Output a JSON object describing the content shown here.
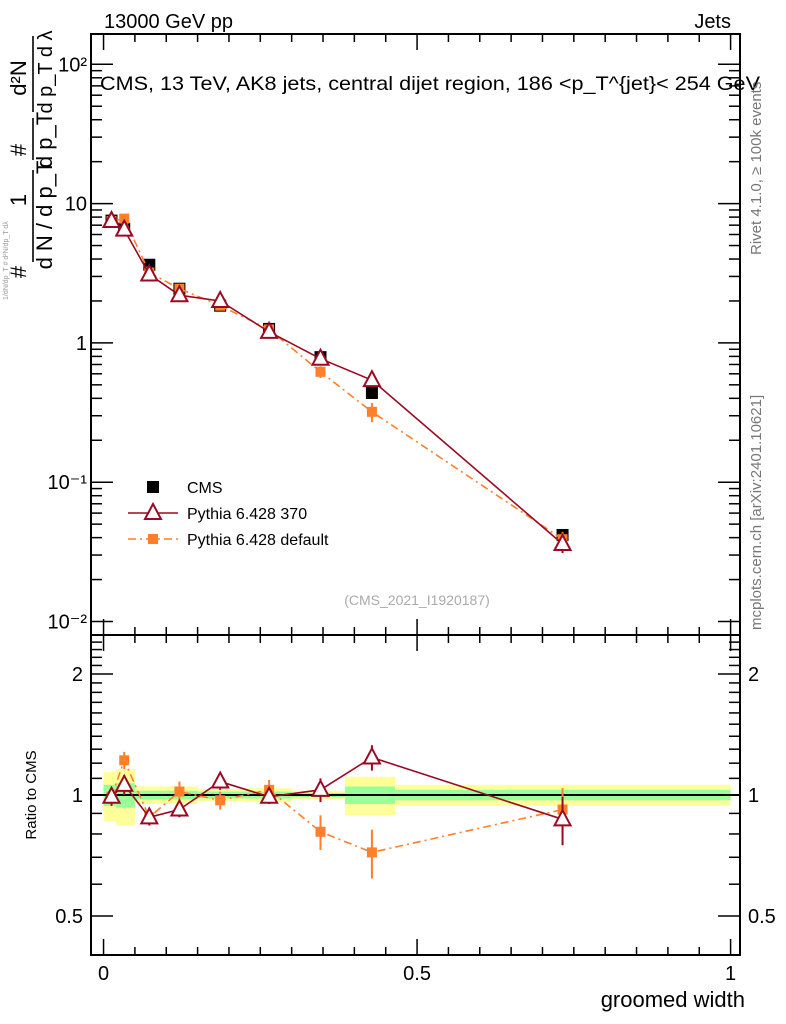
{
  "chart_data": [
    {
      "type": "line",
      "title": "CMS, 13 TeV, AK8 jets, central dijet region, 186 <p_T^{jet}< 254 GeV",
      "top_left_label": "13000 GeV pp",
      "top_right_label": "Jets",
      "side_label_top": "Rivet 4.1.0, ≥ 100k events",
      "side_label_bottom": "mcplots.cern.ch [arXiv:2401.10621]",
      "analysis_label": "(CMS_2021_I1920187)",
      "ylabel": "1/dN/dp_T # d²N/dp_T dλ",
      "ylabel_parts": [
        "#",
        "1",
        "d N / d p_T",
        "#",
        "d p_T",
        "d²N",
        "d p_T d λ"
      ],
      "yscale": "log",
      "ylim": [
        0.008,
        165
      ],
      "yticks": [
        {
          "v": 100,
          "label": "10²"
        },
        {
          "v": 10,
          "label": "10"
        },
        {
          "v": 1,
          "label": "1"
        },
        {
          "v": 0.1,
          "label": "10⁻¹"
        },
        {
          "v": 0.01,
          "label": "10⁻²"
        }
      ],
      "xlim": [
        -0.02,
        1.015
      ],
      "legend_position": "bottom-left",
      "x": [
        0.0127,
        0.033,
        0.073,
        0.121,
        0.186,
        0.264,
        0.346,
        0.428,
        0.732
      ],
      "series": [
        {
          "name": "CMS",
          "color": "#000000",
          "marker": "square",
          "values": [
            7.55,
            6.6,
            3.64,
            2.45,
            1.85,
            1.26,
            0.79,
            0.437,
            0.0418
          ],
          "errors": [
            0.2,
            0.2,
            0.1,
            0.07,
            0.05,
            0.04,
            0.03,
            0.02,
            0.003
          ]
        },
        {
          "name": "Pythia 6.428 370",
          "color": "#9b0a23",
          "marker": "triangle-open",
          "line": "solid",
          "values": [
            7.5,
            6.5,
            3.1,
            2.2,
            2.0,
            1.2,
            0.77,
            0.54,
            0.036
          ],
          "errors": [
            0.4,
            0.3,
            0.12,
            0.1,
            0.1,
            0.06,
            0.05,
            0.05,
            0.005
          ]
        },
        {
          "name": "Pythia 6.428 default",
          "color": "#ff7f2a",
          "marker": "square-small",
          "line": "dashdot",
          "values": [
            7.5,
            7.8,
            3.2,
            2.45,
            1.85,
            1.25,
            0.62,
            0.32,
            0.039
          ],
          "errors": [
            0.4,
            0.3,
            0.12,
            0.1,
            0.1,
            0.06,
            0.06,
            0.05,
            0.005
          ]
        }
      ]
    },
    {
      "type": "line",
      "ylabel": "Ratio to CMS",
      "xlabel": "groomed width",
      "yscale": "log",
      "ylim": [
        0.4,
        2.5
      ],
      "yticks": [
        {
          "v": 2,
          "label": "2"
        },
        {
          "v": 1,
          "label": "1"
        },
        {
          "v": 0.5,
          "label": "0.5"
        }
      ],
      "xticks": [
        {
          "v": 0,
          "label": "0"
        },
        {
          "v": 0.5,
          "label": "0.5"
        },
        {
          "v": 1,
          "label": "1"
        }
      ],
      "xlim": [
        -0.02,
        1.015
      ],
      "bins": [
        [
          0,
          0.02
        ],
        [
          0.02,
          0.05
        ],
        [
          0.05,
          0.1
        ],
        [
          0.1,
          0.15
        ],
        [
          0.15,
          0.225
        ],
        [
          0.225,
          0.3
        ],
        [
          0.3,
          0.385
        ],
        [
          0.385,
          0.465
        ],
        [
          0.465,
          1.0
        ]
      ],
      "band_total": [
        0.14,
        0.16,
        0.05,
        0.05,
        0.035,
        0.04,
        0.025,
        0.11,
        0.06
      ],
      "band_stat": [
        0.06,
        0.07,
        0.025,
        0.025,
        0.02,
        0.02,
        0.012,
        0.05,
        0.03
      ],
      "band_colors": {
        "total": "#ffff99",
        "stat": "#99ff99"
      },
      "x": [
        0.0127,
        0.033,
        0.073,
        0.121,
        0.186,
        0.264,
        0.346,
        0.428,
        0.732
      ],
      "series": [
        {
          "name": "Pythia 6.428 370",
          "color": "#9b0a23",
          "values": [
            0.99,
            1.06,
            0.88,
            0.92,
            1.08,
            0.99,
            1.03,
            1.24,
            0.87
          ],
          "errors": [
            0.05,
            0.06,
            0.04,
            0.04,
            0.05,
            0.04,
            0.07,
            0.09,
            0.12
          ]
        },
        {
          "name": "Pythia 6.428 default",
          "color": "#ff7f2a",
          "values": [
            0.99,
            1.22,
            0.88,
            1.02,
            0.97,
            1.03,
            0.81,
            0.72,
            0.92
          ],
          "errors": [
            0.05,
            0.06,
            0.04,
            0.06,
            0.05,
            0.06,
            0.08,
            0.1,
            0.12
          ]
        }
      ]
    }
  ]
}
